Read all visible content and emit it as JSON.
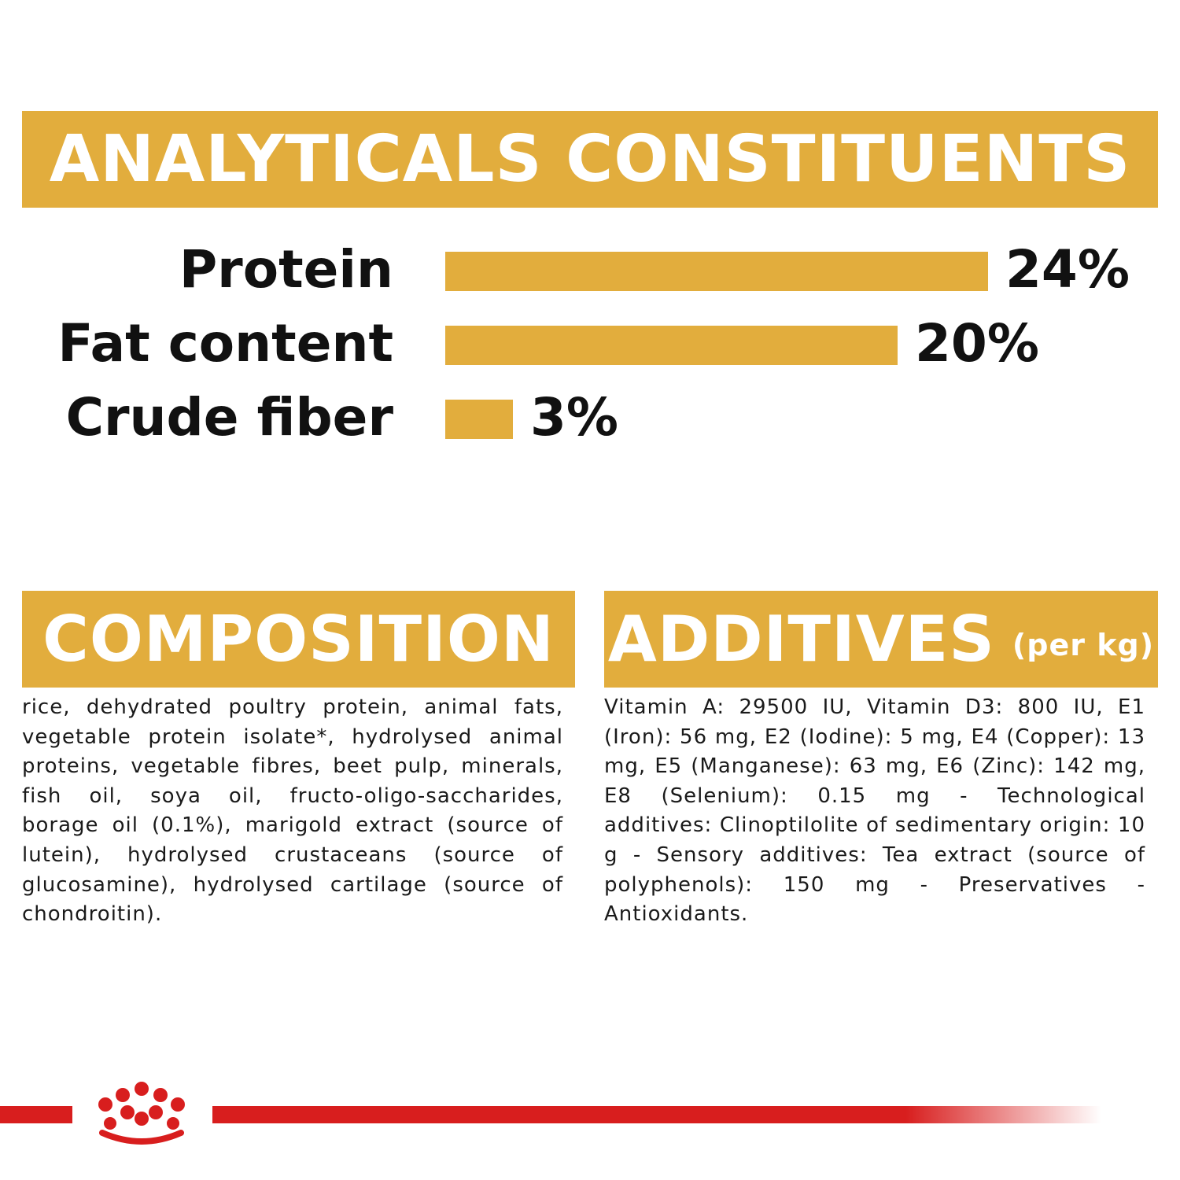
{
  "colors": {
    "accent": "#E2AD3D",
    "brand_red": "#D81E1E",
    "text": "#111111"
  },
  "analyticals": {
    "title": "ANALYTICALS CONSTITUENTS"
  },
  "chart_data": {
    "type": "bar",
    "orientation": "horizontal",
    "title": "ANALYTICALS CONSTITUENTS",
    "categories": [
      "Protein",
      "Fat content",
      "Crude fiber"
    ],
    "values": [
      24,
      20,
      3
    ],
    "value_labels": [
      "24%",
      "20%",
      "3%"
    ],
    "unit": "%",
    "xlim": [
      0,
      24
    ],
    "grid": false
  },
  "composition": {
    "title": "COMPOSITION",
    "text": "rice, dehydrated poultry protein, animal fats, vegetable protein isolate*, hydrolysed animal proteins, vegetable fibres, beet pulp, minerals, fish oil, soya oil, fructo-oligo-saccharides, borage oil (0.1%), marigold extract (source of lutein), hydrolysed crustaceans (source of glucosamine), hydrolysed cartilage (source of chondroitin)."
  },
  "additives": {
    "title": "ADDITIVES",
    "subtitle": "(per kg)",
    "text": "Vitamin A: 29500 IU, Vitamin D3: 800 IU, E1 (Iron): 56 mg, E2 (Iodine): 5 mg, E4 (Copper): 13 mg, E5 (Manganese): 63 mg, E6 (Zinc): 142 mg, E8 (Selenium): 0.15 mg - Technological additives: Clinoptilolite of sedimentary origin: 10 g - Sensory additives: Tea extract (source of polyphenols): 150 mg - Preservatives - Antioxidants."
  },
  "brand": {
    "logo_icon": "crown-icon"
  }
}
